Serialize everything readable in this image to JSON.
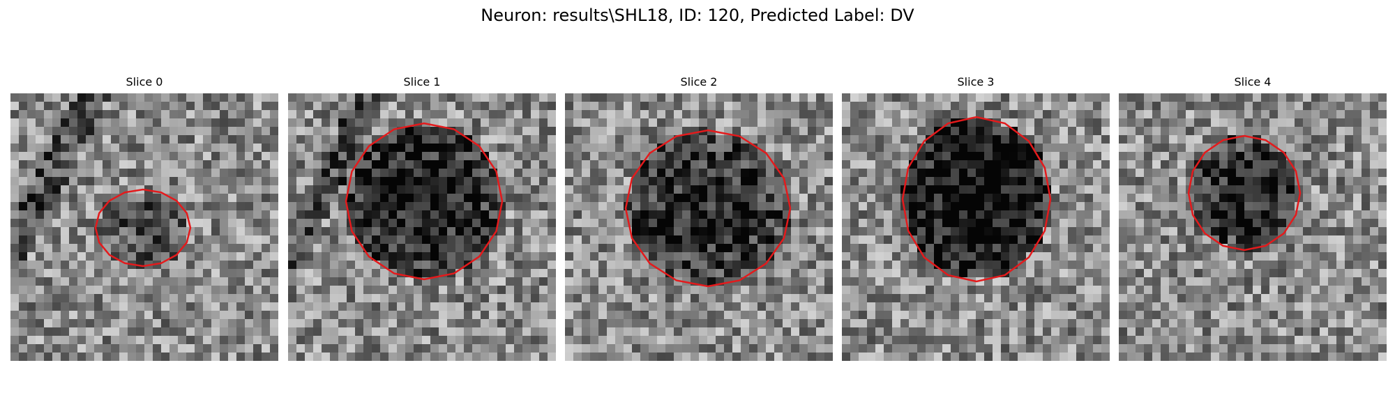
{
  "figure": {
    "title": "Neuron: results\\SHL18, ID: 120, Predicted Label: DV"
  },
  "panels": [
    {
      "title": "Slice 0",
      "seed": 11,
      "contour_color": "#e41a1c"
    },
    {
      "title": "Slice 1",
      "seed": 23,
      "contour_color": "#e41a1c"
    },
    {
      "title": "Slice 2",
      "seed": 37,
      "contour_color": "#e41a1c"
    },
    {
      "title": "Slice 3",
      "seed": 41,
      "contour_color": "#e41a1c"
    },
    {
      "title": "Slice 4",
      "seed": 53,
      "contour_color": "#e41a1c"
    }
  ]
}
